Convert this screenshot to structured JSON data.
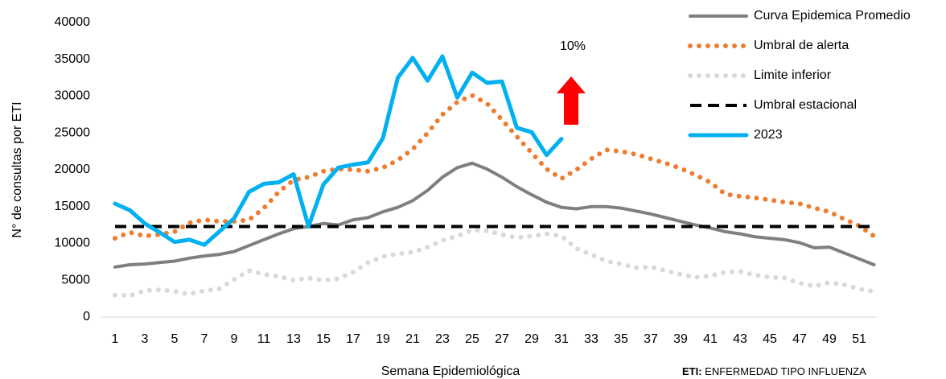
{
  "chart_data": {
    "type": "line",
    "y_label": "N° de consultas por ETI",
    "x_label": "Semana Epidemiológica",
    "annotation": "10%",
    "note": {
      "bold": "ETI:",
      "text": " ENFERMEDAD TIPO INFLUENZA"
    },
    "categories": [
      1,
      null,
      3,
      null,
      5,
      null,
      7,
      null,
      9,
      null,
      11,
      null,
      13,
      null,
      15,
      null,
      17,
      null,
      19,
      null,
      21,
      null,
      23,
      null,
      25,
      null,
      27,
      null,
      29,
      null,
      31,
      null,
      33,
      null,
      35,
      null,
      37,
      null,
      39,
      null,
      41,
      null,
      43,
      null,
      45,
      null,
      47,
      null,
      49,
      null,
      51,
      null
    ],
    "ylim": [
      0,
      40000
    ],
    "yticks": [
      0,
      5000,
      10000,
      15000,
      20000,
      25000,
      30000,
      35000,
      40000
    ],
    "grid": false,
    "legend": "top-right",
    "series": [
      {
        "name": "Curva Epidemica Promedio",
        "color": "#7f7f7f",
        "style": "solid",
        "values": [
          6800,
          7100,
          7200,
          7400,
          7600,
          8000,
          8300,
          8500,
          8900,
          9700,
          10500,
          11300,
          12000,
          12300,
          12700,
          12500,
          13200,
          13500,
          14300,
          14900,
          15800,
          17200,
          19000,
          20300,
          20900,
          20100,
          19000,
          17700,
          16600,
          15600,
          14900,
          14700,
          15000,
          15000,
          14800,
          14400,
          14000,
          13500,
          13000,
          12500,
          12100,
          11600,
          11300,
          10900,
          10700,
          10500,
          10100,
          9400,
          9500,
          8700,
          7900,
          7100
        ]
      },
      {
        "name": "Umbral de alerta",
        "color": "#ed7d31",
        "style": "dotted",
        "values": [
          10700,
          11500,
          11000,
          11200,
          11600,
          12800,
          13200,
          13000,
          13000,
          13200,
          14800,
          17000,
          18600,
          19000,
          19800,
          20100,
          20000,
          19800,
          20300,
          21300,
          22800,
          25000,
          27500,
          29200,
          30100,
          29000,
          26800,
          24500,
          22300,
          20100,
          18800,
          20000,
          21500,
          22700,
          22500,
          22100,
          21500,
          20900,
          20200,
          19300,
          18300,
          16700,
          16400,
          16200,
          15900,
          15600,
          15400,
          14800,
          14300,
          13300,
          12400,
          11000
        ]
      },
      {
        "name": "Limite inferior",
        "color": "#d9d9d9",
        "style": "dotted",
        "values": [
          3000,
          2900,
          3600,
          3700,
          3500,
          3100,
          3600,
          3800,
          5100,
          6300,
          5800,
          5500,
          5000,
          5300,
          5000,
          5200,
          6100,
          7400,
          8200,
          8600,
          8800,
          9500,
          10400,
          11000,
          11800,
          11700,
          11200,
          10800,
          11000,
          11300,
          11000,
          9300,
          8500,
          7600,
          7200,
          6700,
          6800,
          6300,
          5800,
          5400,
          5600,
          6100,
          6200,
          5700,
          5400,
          5300,
          4600,
          4200,
          4700,
          4400,
          3800,
          3500
        ]
      },
      {
        "name": "Umbral estacional",
        "color": "#000000",
        "style": "dashed",
        "values": [
          12300,
          12300,
          12300,
          12300,
          12300,
          12300,
          12300,
          12300,
          12300,
          12300,
          12300,
          12300,
          12300,
          12300,
          12300,
          12300,
          12300,
          12300,
          12300,
          12300,
          12300,
          12300,
          12300,
          12300,
          12300,
          12300,
          12300,
          12300,
          12300,
          12300,
          12300,
          12300,
          12300,
          12300,
          12300,
          12300,
          12300,
          12300,
          12300,
          12300,
          12300,
          12300,
          12300,
          12300,
          12300,
          12300,
          12300,
          12300,
          12300,
          12300,
          12300,
          12300
        ]
      },
      {
        "name": "2023",
        "color": "#00b0f0",
        "style": "solid",
        "values": [
          15400,
          14500,
          12700,
          11500,
          10200,
          10500,
          9800,
          11600,
          13400,
          17000,
          18100,
          18300,
          19400,
          12300,
          18000,
          20300,
          20700,
          21000,
          24300,
          32500,
          35200,
          32100,
          35400,
          29800,
          33200,
          31800,
          32000,
          25700,
          25100,
          22000,
          24200,
          null,
          null,
          null,
          null,
          null,
          null,
          null,
          null,
          null,
          null,
          null,
          null,
          null,
          null,
          null,
          null,
          null,
          null,
          null,
          null,
          null
        ]
      }
    ]
  }
}
